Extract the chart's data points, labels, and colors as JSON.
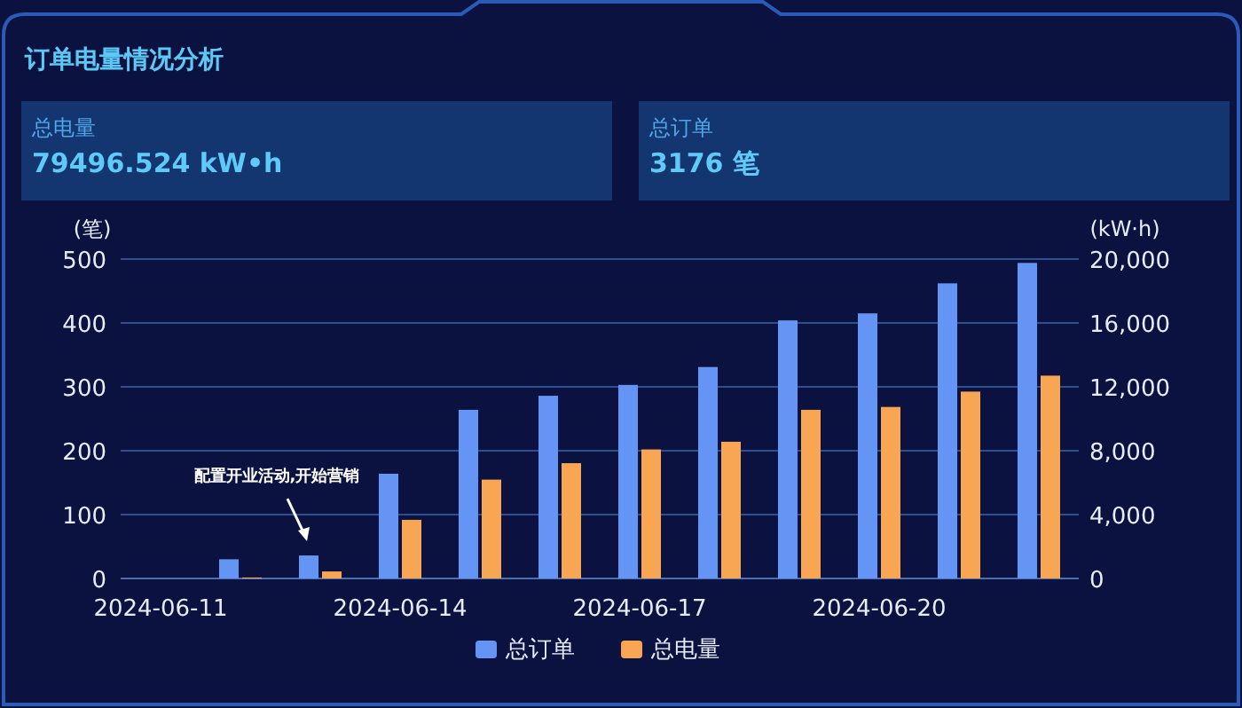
{
  "chart_data": [
    {
      "type": "other",
      "title": "总电量",
      "subtitle": "79496.524 kW•h"
    },
    {
      "type": "other",
      "title": "总订单",
      "subtitle": "3176 笔"
    },
    {
      "type": "bar",
      "title": "订单电量情况分析",
      "ylabel": "(笔)",
      "y2label": "(kW·h)",
      "categories": [
        "2024-06-11",
        null,
        null,
        "2024-06-14",
        null,
        null,
        "2024-06-17",
        null,
        null,
        "2024-06-20",
        null,
        null
      ],
      "series": [
        {
          "name": "总订单",
          "color": "#6495f5",
          "values": [
            0,
            30,
            36,
            164,
            264,
            286,
            303,
            331,
            404,
            415,
            462,
            494
          ]
        },
        {
          "name": "总电量",
          "color": "#f8a653",
          "axis": "y2",
          "values": [
            0,
            60,
            440,
            3670,
            6190,
            7220,
            8080,
            8560,
            10560,
            10740,
            11700,
            12700
          ]
        }
      ],
      "ylim": [
        0,
        500
      ],
      "yticks": [
        0,
        100,
        200,
        300,
        400,
        500
      ],
      "y2lim": [
        0,
        20000
      ],
      "y2ticks": [
        0,
        {
          "value": 4000,
          "label": "4,000"
        },
        {
          "value": 8000,
          "label": "8,000"
        },
        {
          "value": 12000,
          "label": "12,000"
        },
        {
          "value": 16000,
          "label": "16,000"
        },
        {
          "value": 20000,
          "label": "20,000"
        }
      ],
      "grid": "y",
      "legend": "bottom",
      "annotations": [
        "配置开业活动,开始营销"
      ]
    }
  ]
}
